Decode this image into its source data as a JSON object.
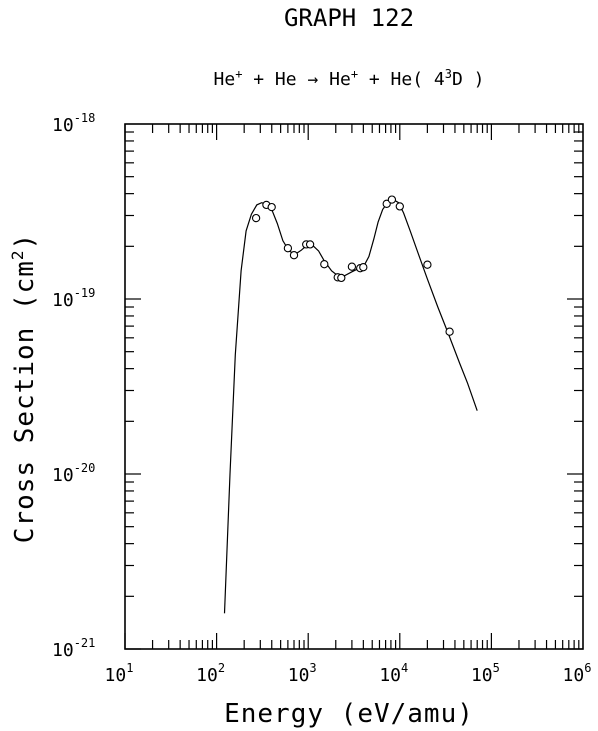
{
  "chart_data": {
    "type": "scatter",
    "title": "GRAPH 122",
    "subtitle": {
      "parts": [
        {
          "t": "He",
          "sup": "+"
        },
        {
          "t": " + He "
        },
        {
          "t": "→",
          "arrow": true
        },
        {
          "t": " He",
          "sup": "+"
        },
        {
          "t": " + He( 4"
        },
        {
          "t": "",
          "sup": "3"
        },
        {
          "t": "D )"
        }
      ]
    },
    "xlabel": "Energy (eV/amu)",
    "ylabel": {
      "base": "Cross Section (cm",
      "sup": "2",
      "end": ")"
    },
    "x_scale": "log",
    "y_scale": "log",
    "xlim": [
      10,
      1000000
    ],
    "ylim": [
      1e-21,
      1e-18
    ],
    "x_ticks": [
      {
        "base": "10",
        "exp": "1",
        "value": 10
      },
      {
        "base": "10",
        "exp": "2",
        "value": 100
      },
      {
        "base": "10",
        "exp": "3",
        "value": 1000
      },
      {
        "base": "10",
        "exp": "4",
        "value": 10000
      },
      {
        "base": "10",
        "exp": "5",
        "value": 100000
      },
      {
        "base": "10",
        "exp": "6",
        "value": 1000000
      }
    ],
    "y_ticks": [
      {
        "base": "10",
        "exp": "-18",
        "value": 1e-18
      },
      {
        "base": "10",
        "exp": "-19",
        "value": 1e-19
      },
      {
        "base": "10",
        "exp": "-20",
        "value": 1e-20
      },
      {
        "base": "10",
        "exp": "-21",
        "value": 1e-21
      }
    ],
    "grid": false,
    "series": [
      {
        "kind": "markers",
        "marker": "circle-open",
        "x": [
          270,
          350,
          400,
          600,
          700,
          950,
          1050,
          1500,
          2100,
          2300,
          3000,
          3700,
          4000,
          7200,
          8200,
          10000,
          20000,
          35000
        ],
        "y": [
          2.9e-19,
          3.45e-19,
          3.35e-19,
          1.95e-19,
          1.78e-19,
          2.05e-19,
          2.05e-19,
          1.58e-19,
          1.33e-19,
          1.32e-19,
          1.53e-19,
          1.5e-19,
          1.52e-19,
          3.5e-19,
          3.7e-19,
          3.38e-19,
          1.57e-19,
          6.5e-20
        ]
      },
      {
        "kind": "line",
        "x": [
          122,
          140,
          160,
          185,
          210,
          240,
          275,
          310,
          350,
          400,
          460,
          530,
          620,
          720,
          840,
          960,
          1100,
          1300,
          1500,
          1800,
          2100,
          2500,
          3000,
          3600,
          4100,
          4600,
          5200,
          5800,
          6500,
          7500,
          8500,
          9700,
          11000,
          13000,
          16000,
          20000,
          26000,
          34000,
          45000,
          55000,
          70000
        ],
        "y": [
          1.6e-21,
          1e-20,
          4.8e-20,
          1.45e-19,
          2.45e-19,
          3.05e-19,
          3.45e-19,
          3.55e-19,
          3.5e-19,
          3.25e-19,
          2.7e-19,
          2.15e-19,
          1.88e-19,
          1.8e-19,
          1.9e-19,
          2.02e-19,
          2.04e-19,
          1.88e-19,
          1.65e-19,
          1.45e-19,
          1.36e-19,
          1.36e-19,
          1.43e-19,
          1.5e-19,
          1.56e-19,
          1.75e-19,
          2.2e-19,
          2.75e-19,
          3.25e-19,
          3.6e-19,
          3.7e-19,
          3.55e-19,
          3.1e-19,
          2.45e-19,
          1.8e-19,
          1.3e-19,
          9e-20,
          6.3e-20,
          4.3e-20,
          3.3e-20,
          2.3e-20
        ]
      }
    ]
  }
}
